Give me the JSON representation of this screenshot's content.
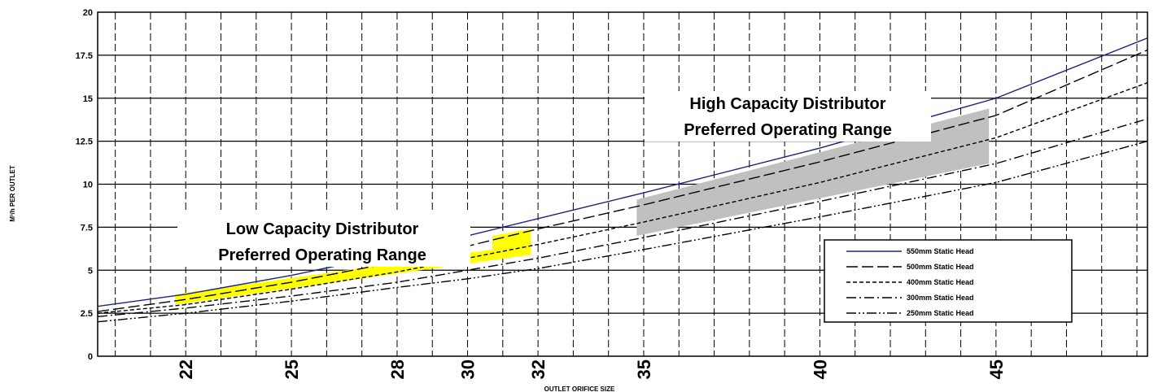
{
  "chart_data": {
    "type": "line",
    "title": "",
    "xlabel": "OUTLET ORIFICE SIZE",
    "ylabel": "M³/h PER OUTLET",
    "xlim": [
      19.5,
      49.3
    ],
    "ylim": [
      0,
      20
    ],
    "x_ticks": [
      22,
      25,
      28,
      30,
      32,
      35,
      40,
      45
    ],
    "y_ticks": [
      0,
      2.5,
      5,
      7.5,
      10,
      12.5,
      15,
      17.5,
      20
    ],
    "y_tick_labels": [
      "0",
      "2.5",
      "5",
      "7.5",
      "10",
      "12.5",
      "15",
      "17.5",
      "20"
    ],
    "grid": true,
    "legend_position": "right",
    "x": [
      19.5,
      22,
      25,
      28,
      30,
      32,
      35,
      40,
      45,
      49.3
    ],
    "series": [
      {
        "name": "550mm Static Head",
        "style": "solid",
        "color": "#1a237e",
        "values": [
          2.9,
          3.6,
          4.7,
          6.0,
          7.0,
          8.0,
          9.5,
          12.1,
          15.0,
          18.5
        ]
      },
      {
        "name": "500mm Static Head",
        "style": "long-dash",
        "color": "#000000",
        "values": [
          2.6,
          3.3,
          4.3,
          5.5,
          6.4,
          7.4,
          8.8,
          11.3,
          14.0,
          17.8
        ]
      },
      {
        "name": "400mm Static Head",
        "style": "short-dash",
        "color": "#000000",
        "values": [
          2.5,
          3.0,
          3.9,
          4.9,
          5.7,
          6.5,
          7.8,
          10.1,
          12.7,
          15.9
        ]
      },
      {
        "name": "300mm Static Head",
        "style": "dash-dot",
        "color": "#000000",
        "values": [
          2.3,
          2.8,
          3.5,
          4.3,
          5.0,
          5.7,
          6.9,
          9.0,
          11.2,
          13.8
        ]
      },
      {
        "name": "250mm Static Head",
        "style": "dash-dot-dot",
        "color": "#000000",
        "values": [
          2.0,
          2.5,
          3.2,
          4.0,
          4.5,
          5.1,
          6.2,
          8.1,
          10.1,
          12.5
        ]
      }
    ],
    "regions": [
      {
        "label_lines": [
          "Low Capacity Distributor",
          "Preferred Operating Range"
        ],
        "color": "#ffff00",
        "polygon": [
          [
            21.7,
            3.0
          ],
          [
            21.7,
            3.6
          ],
          [
            30.7,
            6.2
          ],
          [
            30.7,
            7.0
          ],
          [
            31.8,
            7.4
          ],
          [
            31.8,
            5.9
          ],
          [
            21.7,
            3.0
          ]
        ]
      },
      {
        "label_lines": [
          "High Capacity Distributor",
          "Preferred Operating Range"
        ],
        "color": "#c0c0c0",
        "polygon": [
          [
            34.8,
            7.0
          ],
          [
            34.8,
            9.1
          ],
          [
            44.8,
            14.4
          ],
          [
            44.8,
            11.2
          ],
          [
            34.8,
            7.0
          ]
        ]
      }
    ]
  }
}
